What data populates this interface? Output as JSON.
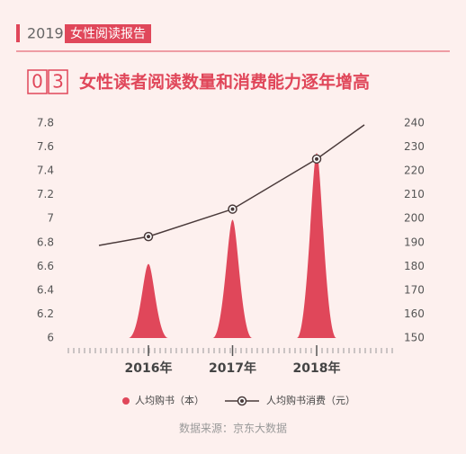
{
  "header": {
    "year": "2019",
    "tag": "女性阅读报告"
  },
  "section": {
    "digits": [
      "0",
      "3"
    ],
    "title": "女性读者阅读数量和消费能力逐年增高"
  },
  "chart_data": {
    "type": "bar-line",
    "categories": [
      "2016年",
      "2017年",
      "2018年"
    ],
    "series": [
      {
        "name": "人均购书（本）",
        "color": "#e0475a",
        "values": [
          6.62,
          6.99,
          7.55
        ]
      },
      {
        "name": "人均购书消费（元）",
        "color": "#4a3a3a",
        "values": [
          192.5,
          204,
          225
        ],
        "axis": "y2"
      }
    ],
    "ylim": [
      6,
      7.8
    ],
    "yticks": [
      6,
      6.2,
      6.4,
      6.6,
      6.8,
      7,
      7.2,
      7.4,
      7.6,
      7.8
    ],
    "y2lim": [
      150,
      240
    ],
    "y2ticks": [
      150,
      160,
      170,
      180,
      190,
      200,
      210,
      220,
      230,
      240
    ],
    "source": "数据来源：京东大数据"
  }
}
